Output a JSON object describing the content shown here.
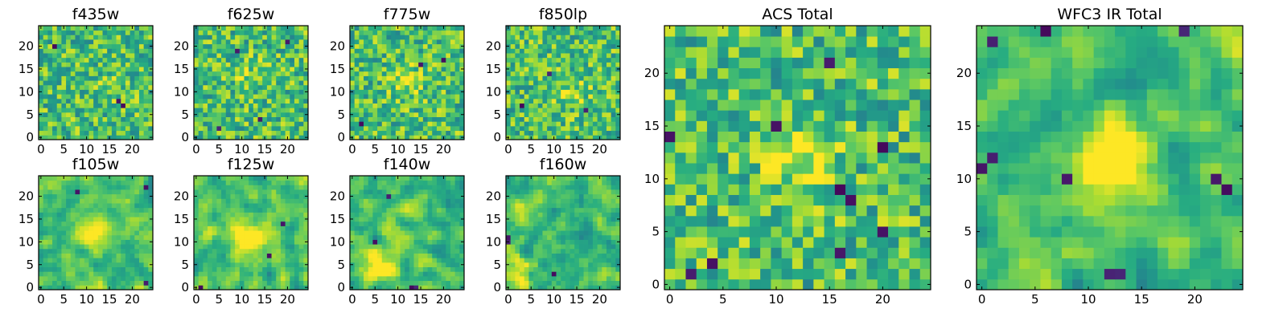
{
  "chart_data": [
    {
      "type": "heatmap",
      "title": "f435w",
      "grid_size": 25,
      "xlim": [
        0,
        24
      ],
      "ylim": [
        0,
        24
      ],
      "xticks": [
        "0",
        "5",
        "10",
        "15",
        "20"
      ],
      "yticks": [
        "0",
        "5",
        "10",
        "15",
        "20"
      ],
      "colormap": "viridis",
      "seed": 11,
      "smooth": 0,
      "hotspot": [
        16,
        12,
        0.02
      ],
      "dark_spots": [
        [
          17,
          8
        ],
        [
          18,
          7
        ],
        [
          3,
          20
        ]
      ]
    },
    {
      "type": "heatmap",
      "title": "f625w",
      "grid_size": 25,
      "xlim": [
        0,
        24
      ],
      "ylim": [
        0,
        24
      ],
      "xticks": [
        "0",
        "5",
        "10",
        "15",
        "20"
      ],
      "yticks": [
        "0",
        "5",
        "10",
        "15",
        "20"
      ],
      "colormap": "viridis",
      "seed": 23,
      "smooth": 0,
      "hotspot": [
        12,
        14,
        0.03
      ],
      "dark_spots": [
        [
          5,
          2
        ],
        [
          20,
          21
        ],
        [
          9,
          19
        ],
        [
          14,
          4
        ]
      ]
    },
    {
      "type": "heatmap",
      "title": "f775w",
      "grid_size": 25,
      "xlim": [
        0,
        24
      ],
      "ylim": [
        0,
        24
      ],
      "xticks": [
        "0",
        "5",
        "10",
        "15",
        "20"
      ],
      "yticks": [
        "0",
        "5",
        "10",
        "15",
        "20"
      ],
      "colormap": "viridis",
      "seed": 37,
      "smooth": 0,
      "hotspot": [
        12,
        12,
        0.05
      ],
      "dark_spots": [
        [
          20,
          17
        ],
        [
          2,
          3
        ],
        [
          15,
          16
        ]
      ]
    },
    {
      "type": "heatmap",
      "title": "f850lp",
      "grid_size": 25,
      "xlim": [
        0,
        24
      ],
      "ylim": [
        0,
        24
      ],
      "xticks": [
        "0",
        "5",
        "10",
        "15",
        "20"
      ],
      "yticks": [
        "0",
        "5",
        "10",
        "15",
        "20"
      ],
      "colormap": "viridis",
      "seed": 41,
      "smooth": 0,
      "hotspot": [
        14,
        10,
        0.04
      ],
      "dark_spots": [
        [
          3,
          7
        ],
        [
          17,
          6
        ],
        [
          9,
          14
        ]
      ]
    },
    {
      "type": "heatmap",
      "title": "f105w",
      "grid_size": 25,
      "xlim": [
        0,
        24
      ],
      "ylim": [
        0,
        24
      ],
      "xticks": [
        "0",
        "5",
        "10",
        "15",
        "20"
      ],
      "yticks": [
        "0",
        "5",
        "10",
        "15",
        "20"
      ],
      "colormap": "viridis",
      "seed": 53,
      "smooth": 1,
      "hotspot": [
        12,
        12,
        0.08
      ],
      "dark_spots": [
        [
          23,
          22
        ],
        [
          8,
          21
        ],
        [
          23,
          1
        ]
      ]
    },
    {
      "type": "heatmap",
      "title": "f125w",
      "grid_size": 25,
      "xlim": [
        0,
        24
      ],
      "ylim": [
        0,
        24
      ],
      "xticks": [
        "0",
        "5",
        "10",
        "15",
        "20"
      ],
      "yticks": [
        "0",
        "5",
        "10",
        "15",
        "20"
      ],
      "colormap": "viridis",
      "seed": 67,
      "smooth": 1,
      "hotspot": [
        12,
        11,
        0.1
      ],
      "dark_spots": [
        [
          19,
          14
        ],
        [
          1,
          0
        ],
        [
          16,
          7
        ]
      ]
    },
    {
      "type": "heatmap",
      "title": "f140w",
      "grid_size": 25,
      "xlim": [
        0,
        24
      ],
      "ylim": [
        0,
        24
      ],
      "xticks": [
        "0",
        "5",
        "10",
        "15",
        "20"
      ],
      "yticks": [
        "0",
        "5",
        "10",
        "15",
        "20"
      ],
      "colormap": "viridis",
      "seed": 71,
      "smooth": 1,
      "hotspot": [
        6,
        4,
        0.1
      ],
      "dark_spots": [
        [
          13,
          0
        ],
        [
          14,
          0
        ],
        [
          8,
          20
        ],
        [
          5,
          10
        ]
      ]
    },
    {
      "type": "heatmap",
      "title": "f160w",
      "grid_size": 25,
      "xlim": [
        0,
        24
      ],
      "ylim": [
        0,
        24
      ],
      "xticks": [
        "0",
        "5",
        "10",
        "15",
        "20"
      ],
      "yticks": [
        "0",
        "5",
        "10",
        "15",
        "20"
      ],
      "colormap": "viridis",
      "seed": 83,
      "smooth": 1,
      "hotspot": [
        2,
        3,
        0.08
      ],
      "dark_spots": [
        [
          0,
          10
        ],
        [
          0,
          11
        ],
        [
          10,
          3
        ]
      ]
    },
    {
      "type": "heatmap",
      "title": "ACS Total",
      "grid_size": 25,
      "xlim": [
        0,
        24
      ],
      "ylim": [
        0,
        24
      ],
      "xticks": [
        "0",
        "5",
        "10",
        "15",
        "20"
      ],
      "yticks": [
        "0",
        "5",
        "10",
        "15",
        "20"
      ],
      "colormap": "viridis",
      "seed": 97,
      "smooth": 0,
      "hotspot": [
        12,
        12,
        0.06
      ],
      "dark_spots": [
        [
          10,
          15
        ],
        [
          20,
          13
        ],
        [
          16,
          9
        ],
        [
          17,
          8
        ],
        [
          2,
          1
        ],
        [
          4,
          2
        ],
        [
          20,
          5
        ],
        [
          16,
          3
        ],
        [
          15,
          21
        ],
        [
          0,
          14
        ]
      ]
    },
    {
      "type": "heatmap",
      "title": "WFC3 IR Total",
      "grid_size": 25,
      "xlim": [
        0,
        24
      ],
      "ylim": [
        0,
        24
      ],
      "xticks": [
        "0",
        "5",
        "10",
        "15",
        "20"
      ],
      "yticks": [
        "0",
        "5",
        "10",
        "15",
        "20"
      ],
      "colormap": "viridis",
      "seed": 101,
      "smooth": 1,
      "hotspot": [
        12,
        12,
        0.12
      ],
      "dark_spots": [
        [
          0,
          11
        ],
        [
          1,
          12
        ],
        [
          8,
          10
        ],
        [
          22,
          10
        ],
        [
          23,
          9
        ],
        [
          13,
          1
        ],
        [
          12,
          1
        ],
        [
          6,
          24
        ],
        [
          1,
          23
        ],
        [
          19,
          24
        ]
      ]
    }
  ]
}
